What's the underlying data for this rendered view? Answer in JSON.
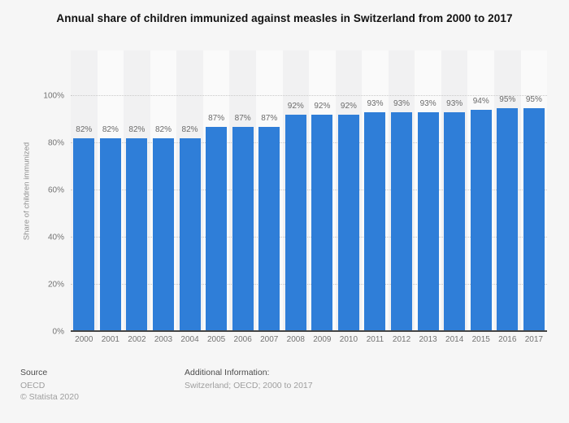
{
  "title": "Annual share of children immunized against measles in Switzerland from 2000 to 2017",
  "chart_data": {
    "type": "bar",
    "title": "Annual share of children immunized against measles in Switzerland from 2000 to 2017",
    "categories": [
      "2000",
      "2001",
      "2002",
      "2003",
      "2004",
      "2005",
      "2006",
      "2007",
      "2008",
      "2009",
      "2010",
      "2011",
      "2012",
      "2013",
      "2014",
      "2015",
      "2016",
      "2017"
    ],
    "values": [
      82,
      82,
      82,
      82,
      82,
      87,
      87,
      87,
      92,
      92,
      92,
      93,
      93,
      93,
      93,
      94,
      95,
      95
    ],
    "value_suffix": "%",
    "xlabel": "",
    "ylabel": "Share of children immunized",
    "ylim": [
      0,
      100
    ],
    "ytick_values": [
      0,
      20,
      40,
      60,
      80,
      100
    ],
    "ytick_suffix": "%",
    "grid": "horizontal-dotted",
    "legend": "none",
    "bar_color": "#2f7ed8"
  },
  "colors": {
    "bar": "#2f7ed8",
    "background": "#f6f6f6",
    "band_dark": "#f1f1f2",
    "band_light": "#fafafa",
    "axis_line": "#454545",
    "gridline": "#c9c9c9",
    "label_gray": "#6b6b6b"
  },
  "footer": {
    "source_label": "Source",
    "source_value": "OECD",
    "copyright": "© Statista 2020",
    "additional_label": "Additional Information:",
    "additional_value": "Switzerland; OECD; 2000 to 2017"
  }
}
